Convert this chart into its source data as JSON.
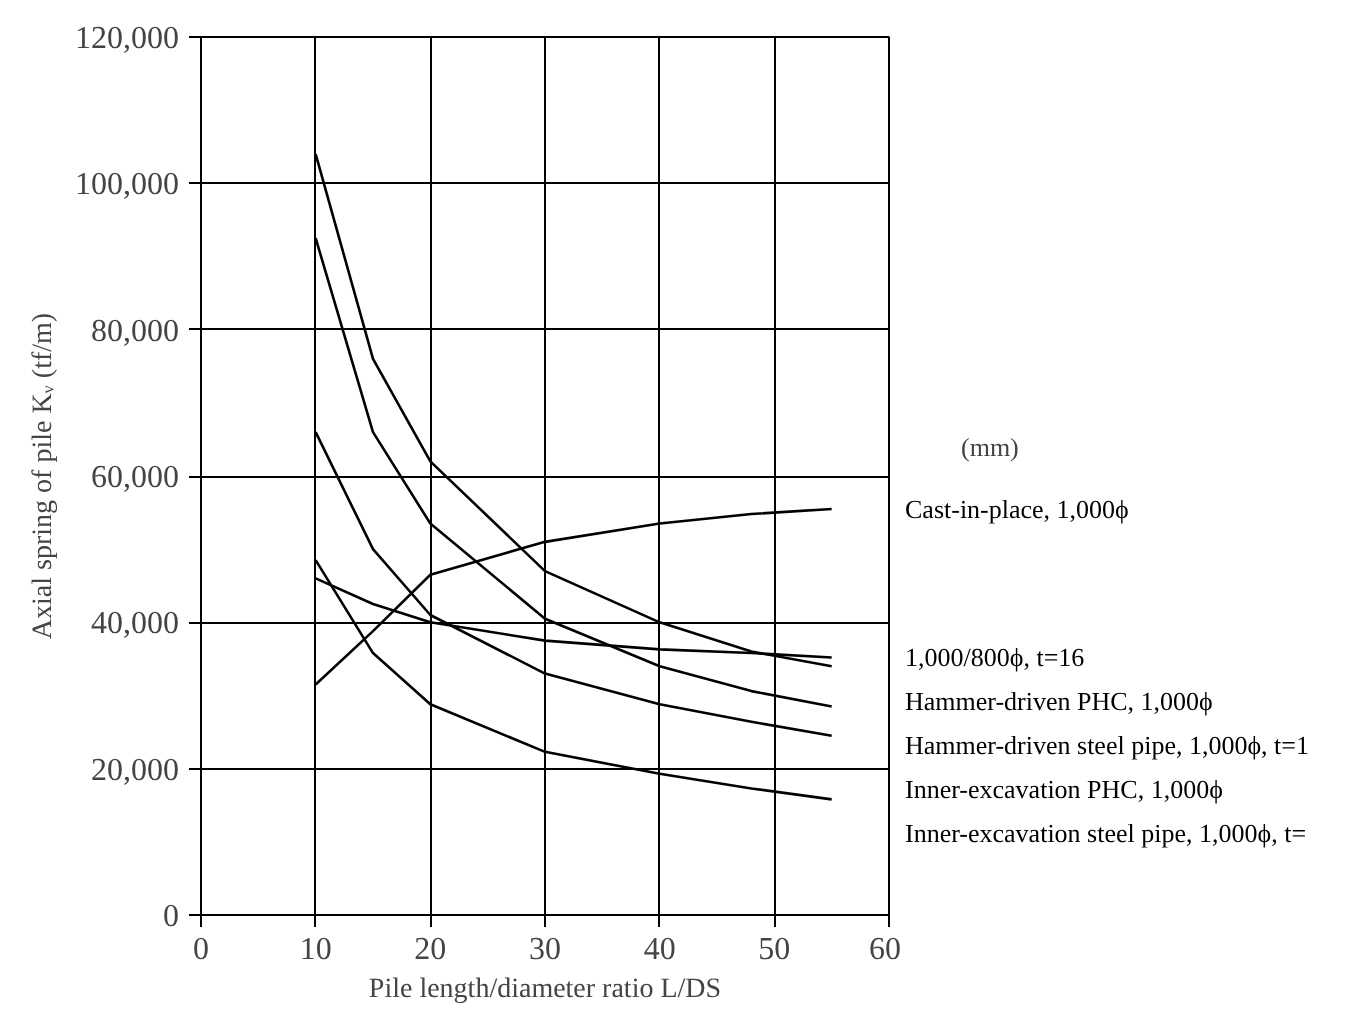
{
  "chart_data": {
    "type": "line",
    "xlabel": "Pile length/diameter ratio L/DS",
    "ylabel": "Axial spring of pile Kᵥ (tf/m)",
    "xlim": [
      0,
      60
    ],
    "xticks": [
      0,
      10,
      20,
      30,
      40,
      50,
      60
    ],
    "ylim": [
      0,
      120000
    ],
    "yticks": [
      0,
      {
        "value": 20000,
        "label": "20,000"
      },
      {
        "value": 40000,
        "label": "40,000"
      },
      {
        "value": 60000,
        "label": "60,000"
      },
      {
        "value": 80000,
        "label": "80,000"
      },
      {
        "value": 100000,
        "label": "100,000"
      },
      {
        "value": 120000,
        "label": "120,000"
      }
    ],
    "grid": true,
    "x": [
      10,
      15,
      20,
      30,
      40,
      48,
      55
    ],
    "series": [
      {
        "name": "Cast-in-place, 1,000ϕ",
        "color": "#000000",
        "values": [
          31500,
          38800,
          46500,
          51000,
          53500,
          54800,
          55500
        ]
      },
      {
        "name": "1,000/800ϕ, t=16",
        "color": "#000000",
        "values": [
          46000,
          42500,
          40000,
          37500,
          36300,
          35800,
          35200
        ]
      },
      {
        "name": "Hammer-driven PHC, 1,000ϕ",
        "color": "#000000",
        "values": [
          104000,
          76000,
          62000,
          47000,
          40000,
          36000,
          34000
        ]
      },
      {
        "name": "Hammer-driven steel pipe, 1,000ϕ, t=1",
        "color": "#000000",
        "values": [
          92500,
          66000,
          53500,
          40500,
          34000,
          30600,
          28500
        ]
      },
      {
        "name": "Inner-excavation PHC, 1,000ϕ",
        "color": "#000000",
        "values": [
          66000,
          50000,
          41000,
          33000,
          28800,
          26400,
          24500
        ]
      },
      {
        "name": "Inner-excavation steel pipe, 1,000ϕ, t=",
        "color": "#000000",
        "values": [
          48500,
          35800,
          28800,
          22300,
          19300,
          17300,
          15800
        ]
      }
    ],
    "annotations": [
      "(mm)"
    ]
  }
}
